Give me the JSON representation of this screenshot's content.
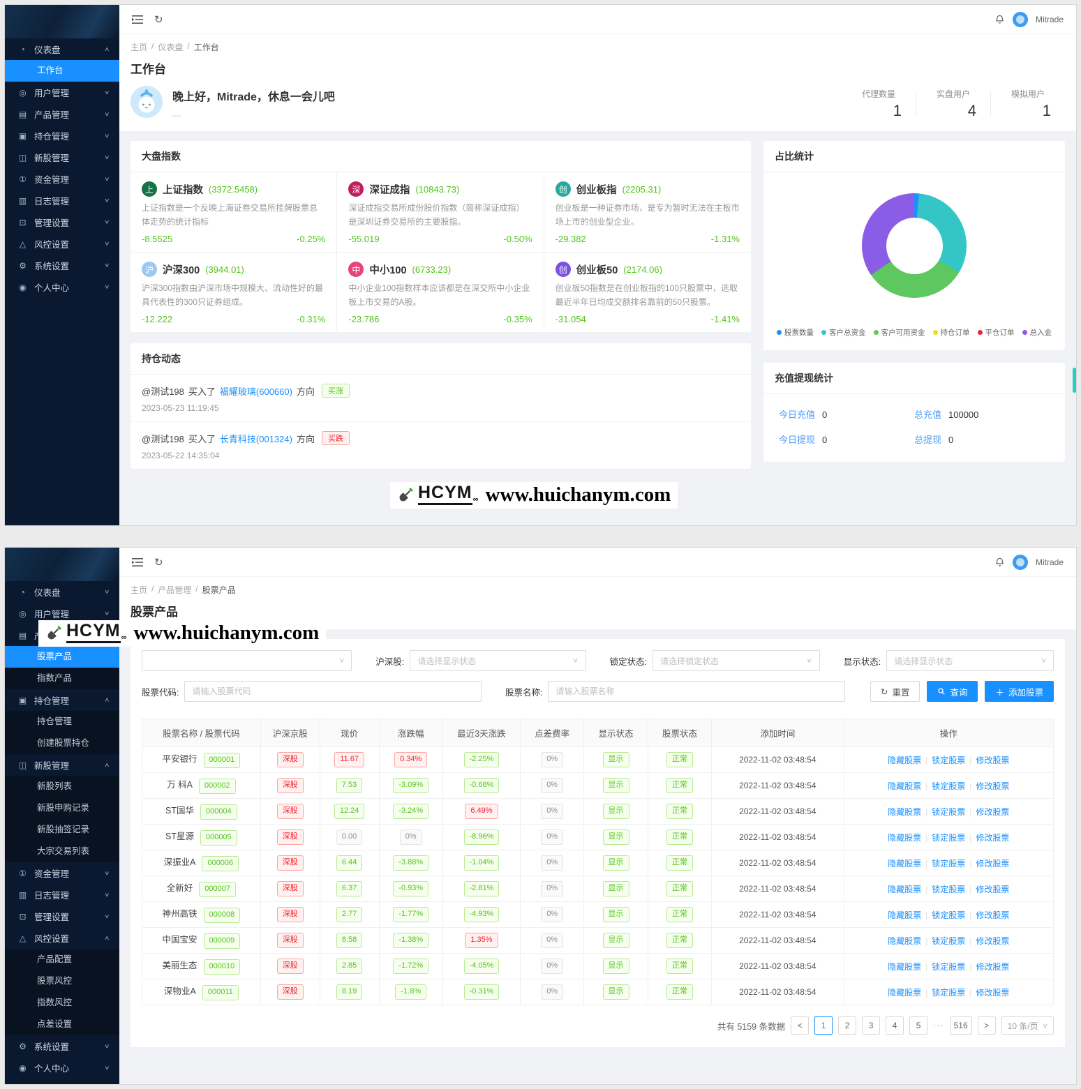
{
  "topbar": {
    "user": "Mitrade"
  },
  "watermark": {
    "brand": "HCYM",
    "sub": "∞",
    "url": "www.huichanym.com"
  },
  "sidebar_dashboard": [
    {
      "key": "dashboard",
      "icon": "gauge",
      "glyph": "◔",
      "label": "仪表盘",
      "expanded": true,
      "children": [
        {
          "key": "workbench",
          "label": "工作台",
          "active": true
        }
      ]
    },
    {
      "key": "users",
      "icon": "user",
      "glyph": "◎",
      "label": "用户管理"
    },
    {
      "key": "products",
      "icon": "product",
      "glyph": "▤",
      "label": "产品管理"
    },
    {
      "key": "positions",
      "icon": "position",
      "glyph": "▣",
      "label": "持仓管理"
    },
    {
      "key": "ipo",
      "icon": "ipo",
      "glyph": "◫",
      "label": "新股管理"
    },
    {
      "key": "funds",
      "icon": "fund",
      "glyph": "①",
      "label": "资金管理"
    },
    {
      "key": "logs",
      "icon": "log",
      "glyph": "▥",
      "label": "日志管理"
    },
    {
      "key": "admin-settings",
      "icon": "admin",
      "glyph": "⊡",
      "label": "管理设置"
    },
    {
      "key": "risk-settings",
      "icon": "risk",
      "glyph": "△",
      "label": "风控设置"
    },
    {
      "key": "system-settings",
      "icon": "gear",
      "glyph": "⚙",
      "label": "系统设置"
    },
    {
      "key": "profile",
      "icon": "person",
      "glyph": "◉",
      "label": "个人中心"
    }
  ],
  "sidebar_products": [
    {
      "key": "dashboard",
      "icon": "gauge",
      "glyph": "◔",
      "label": "仪表盘"
    },
    {
      "key": "users",
      "icon": "user",
      "glyph": "◎",
      "label": "用户管理"
    },
    {
      "key": "products",
      "icon": "product",
      "glyph": "▤",
      "label": "产品管理",
      "expanded": true,
      "children": [
        {
          "key": "stock-product",
          "label": "股票产品",
          "active": true
        },
        {
          "key": "index-product",
          "label": "指数产品"
        }
      ]
    },
    {
      "key": "positions",
      "icon": "position",
      "glyph": "▣",
      "label": "持仓管理",
      "expanded": true,
      "children": [
        {
          "key": "position-manage",
          "label": "持仓管理"
        },
        {
          "key": "create-stock-position",
          "label": "创建股票持仓"
        }
      ]
    },
    {
      "key": "ipo",
      "icon": "ipo",
      "glyph": "◫",
      "label": "新股管理",
      "expanded": true,
      "children": [
        {
          "key": "ipo-list",
          "label": "新股列表"
        },
        {
          "key": "ipo-subscribe-records",
          "label": "新股申购记录"
        },
        {
          "key": "ipo-lottery-records",
          "label": "新股抽签记录"
        },
        {
          "key": "block-trade-list",
          "label": "大宗交易列表"
        }
      ]
    },
    {
      "key": "funds",
      "icon": "fund",
      "glyph": "①",
      "label": "资金管理"
    },
    {
      "key": "logs",
      "icon": "log",
      "glyph": "▥",
      "label": "日志管理"
    },
    {
      "key": "admin-settings",
      "icon": "admin",
      "glyph": "⊡",
      "label": "管理设置"
    },
    {
      "key": "risk-settings",
      "icon": "risk",
      "glyph": "△",
      "label": "风控设置",
      "expanded": true,
      "children": [
        {
          "key": "product-config",
          "label": "产品配置"
        },
        {
          "key": "stock-risk",
          "label": "股票风控"
        },
        {
          "key": "index-risk",
          "label": "指数风控"
        },
        {
          "key": "spread-settings",
          "label": "点差设置"
        }
      ]
    },
    {
      "key": "system-settings",
      "icon": "gear",
      "glyph": "⚙",
      "label": "系统设置"
    },
    {
      "key": "profile",
      "icon": "person",
      "glyph": "◉",
      "label": "个人中心"
    }
  ],
  "dashboard": {
    "breadcrumb": [
      "主页",
      "仪表盘",
      "工作台"
    ],
    "page_title": "工作台",
    "greeting": "晚上好，Mitrade，休息一会儿吧",
    "greeting_dash": "—",
    "stats": [
      {
        "label": "代理数量",
        "value": "1"
      },
      {
        "label": "实盘用户",
        "value": "4"
      },
      {
        "label": "模拟用户",
        "value": "1"
      }
    ],
    "indices": {
      "title": "大盘指数",
      "cards": [
        {
          "name": "上证指数",
          "value": "(3372.5458)",
          "badge": "上",
          "color": "#157347",
          "desc": "上证指数是一个反映上海证券交易所挂牌股票总体走势的统计指标",
          "change": "-8.5525",
          "pct": "-0.25%"
        },
        {
          "name": "深证成指",
          "value": "(10843.73)",
          "badge": "深",
          "color": "#bf1f5e",
          "desc": "深证成指交易所成份股价指数（简称深证成指）是深圳证券交易所的主要股指。",
          "change": "-55.019",
          "pct": "-0.50%"
        },
        {
          "name": "创业板指",
          "value": "(2205.31)",
          "badge": "创",
          "color": "#2aa79b",
          "desc": "创业板是一种证券市场，是专为暂时无法在主板市场上市的创业型企业。",
          "change": "-29.382",
          "pct": "-1.31%"
        },
        {
          "name": "沪深300",
          "value": "(3944.01)",
          "badge": "沪",
          "color": "#9cc8f0",
          "desc": "沪深300指数由沪深市场中规模大、流动性好的最具代表性的300只证券组成。",
          "change": "-12.222",
          "pct": "-0.31%"
        },
        {
          "name": "中小100",
          "value": "(6733.23)",
          "badge": "中",
          "color": "#e8437e",
          "desc": "中小企业100指数样本应该都是在深交所中小企业板上市交易的A股。",
          "change": "-23.786",
          "pct": "-0.35%"
        },
        {
          "name": "创业板50",
          "value": "(2174.06)",
          "badge": "创",
          "color": "#7a52e0",
          "desc": "创业板50指数是在创业板指的100只股票中，选取最近半年日均成交额排名靠前的50只股票。",
          "change": "-31.054",
          "pct": "-1.41%"
        }
      ]
    },
    "positions": {
      "title": "持仓动态",
      "items": [
        {
          "user": "@测试198",
          "action": "买入了",
          "stock": "福耀玻璃(600660)",
          "dir_label": "方向",
          "direction": "买涨",
          "dir_type": "up",
          "time": "2023-05-23 11:19:45"
        },
        {
          "user": "@测试198",
          "action": "买入了",
          "stock": "长青科技(001324)",
          "dir_label": "方向",
          "direction": "买跌",
          "dir_type": "down",
          "time": "2023-05-22 14:35:04"
        }
      ]
    },
    "chart_card_title": "占比统计",
    "recharge": {
      "title": "充值提现统计",
      "items": [
        {
          "label": "今日充值",
          "value": "0"
        },
        {
          "label": "总充值",
          "value": "100000"
        },
        {
          "label": "今日提现",
          "value": "0"
        },
        {
          "label": "总提现",
          "value": "0"
        }
      ]
    }
  },
  "chart_data": {
    "type": "pie",
    "title": "占比统计",
    "labels": [
      "股票数量",
      "客户总资金",
      "客户可用资金",
      "持仓订单",
      "平仓订单",
      "总入金"
    ],
    "values": [
      1.5,
      32,
      32,
      0,
      0,
      34.5
    ],
    "colors": [
      "#1f8fff",
      "#34c5c7",
      "#5ec75f",
      "#fadb14",
      "#f5222d",
      "#8b5ce6"
    ],
    "legend_position": "bottom",
    "donut": true,
    "inner_radius_ratio": 0.54
  },
  "products": {
    "breadcrumb": [
      "主页",
      "产品管理",
      "股票产品"
    ],
    "page_title": "股票产品",
    "filters": {
      "hssg": {
        "label": "沪深股:",
        "placeholder": "请选择显示状态"
      },
      "lock": {
        "label": "锁定状态:",
        "placeholder": "请选择锁定状态"
      },
      "show": {
        "label": "显示状态:",
        "placeholder": "请选择显示状态"
      },
      "code": {
        "label": "股票代码:",
        "placeholder": "请输入股票代码"
      },
      "name": {
        "label": "股票名称:",
        "placeholder": "请输入股票名称"
      },
      "reset_btn": "重置",
      "query_btn": "查询",
      "add_btn": "添加股票"
    },
    "table": {
      "headers": [
        "股票名称 / 股票代码",
        "沪深京股",
        "现价",
        "涨跌幅",
        "最近3天涨跌",
        "点差费率",
        "显示状态",
        "股票状态",
        "添加时间",
        "操作"
      ],
      "actions": [
        "隐藏股票",
        "锁定股票",
        "修改股票"
      ],
      "rows": [
        {
          "name": "平安银行",
          "code": "000001",
          "market": "深股",
          "price": "11.67",
          "price_t": "red",
          "chg": "0.34%",
          "chg_t": "red",
          "d3": "-2.25%",
          "d3_t": "green",
          "fee": "0%",
          "show": "显示",
          "status": "正常",
          "time": "2022-11-02 03:48:54"
        },
        {
          "name": "万 科A",
          "code": "000002",
          "market": "深股",
          "price": "7.53",
          "price_t": "green",
          "chg": "-3.09%",
          "chg_t": "green",
          "d3": "-0.68%",
          "d3_t": "green",
          "fee": "0%",
          "show": "显示",
          "status": "正常",
          "time": "2022-11-02 03:48:54"
        },
        {
          "name": "ST国华",
          "code": "000004",
          "market": "深股",
          "price": "12.24",
          "price_t": "green",
          "chg": "-3.24%",
          "chg_t": "green",
          "d3": "6.49%",
          "d3_t": "red",
          "fee": "0%",
          "show": "显示",
          "status": "正常",
          "time": "2022-11-02 03:48:54"
        },
        {
          "name": "ST星源",
          "code": "000005",
          "market": "深股",
          "price": "0.00",
          "price_t": "gray",
          "chg": "0%",
          "chg_t": "gray",
          "d3": "-8.96%",
          "d3_t": "green",
          "fee": "0%",
          "show": "显示",
          "status": "正常",
          "time": "2022-11-02 03:48:54"
        },
        {
          "name": "深振业A",
          "code": "000006",
          "market": "深股",
          "price": "6.44",
          "price_t": "green",
          "chg": "-3.88%",
          "chg_t": "green",
          "d3": "-1.04%",
          "d3_t": "green",
          "fee": "0%",
          "show": "显示",
          "status": "正常",
          "time": "2022-11-02 03:48:54"
        },
        {
          "name": "全新好",
          "code": "000007",
          "market": "深股",
          "price": "6.37",
          "price_t": "green",
          "chg": "-0.93%",
          "chg_t": "green",
          "d3": "-2.81%",
          "d3_t": "green",
          "fee": "0%",
          "show": "显示",
          "status": "正常",
          "time": "2022-11-02 03:48:54"
        },
        {
          "name": "神州高铁",
          "code": "000008",
          "market": "深股",
          "price": "2.77",
          "price_t": "green",
          "chg": "-1.77%",
          "chg_t": "green",
          "d3": "-4.93%",
          "d3_t": "green",
          "fee": "0%",
          "show": "显示",
          "status": "正常",
          "time": "2022-11-02 03:48:54"
        },
        {
          "name": "中国宝安",
          "code": "000009",
          "market": "深股",
          "price": "8.58",
          "price_t": "green",
          "chg": "-1.38%",
          "chg_t": "green",
          "d3": "1.35%",
          "d3_t": "red",
          "fee": "0%",
          "show": "显示",
          "status": "正常",
          "time": "2022-11-02 03:48:54"
        },
        {
          "name": "美丽生态",
          "code": "000010",
          "market": "深股",
          "price": "2.85",
          "price_t": "green",
          "chg": "-1.72%",
          "chg_t": "green",
          "d3": "-4.05%",
          "d3_t": "green",
          "fee": "0%",
          "show": "显示",
          "status": "正常",
          "time": "2022-11-02 03:48:54"
        },
        {
          "name": "深物业A",
          "code": "000011",
          "market": "深股",
          "price": "8.19",
          "price_t": "green",
          "chg": "-1.8%",
          "chg_t": "green",
          "d3": "-0.31%",
          "d3_t": "green",
          "fee": "0%",
          "show": "显示",
          "status": "正常",
          "time": "2022-11-02 03:48:54"
        }
      ]
    },
    "pagination": {
      "total_text": "共有 5159 条数据",
      "pages": [
        "1",
        "2",
        "3",
        "4",
        "5",
        "···",
        "516"
      ],
      "active": "1",
      "page_size": "10 条/页"
    }
  }
}
